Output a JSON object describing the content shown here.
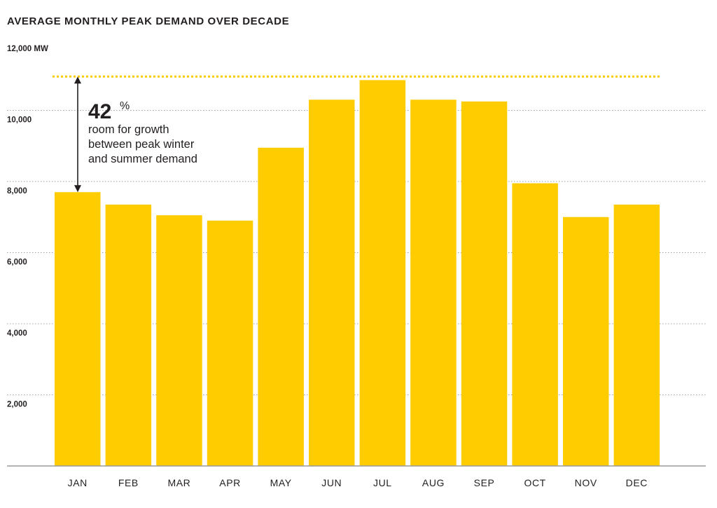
{
  "chart_data": {
    "type": "bar",
    "title": "AVERAGE MONTHLY PEAK DEMAND OVER DECADE",
    "unit": "MW",
    "ylim": [
      0,
      12000
    ],
    "yticks": [
      {
        "value": 2000,
        "label": "2,000"
      },
      {
        "value": 4000,
        "label": "4,000"
      },
      {
        "value": 6000,
        "label": "6,000"
      },
      {
        "value": 8000,
        "label": "8,000"
      },
      {
        "value": 10000,
        "label": "10,000"
      },
      {
        "value": 12000,
        "label": "12,000 MW"
      }
    ],
    "grid": true,
    "categories": [
      "JAN",
      "FEB",
      "MAR",
      "APR",
      "MAY",
      "JUN",
      "JUL",
      "AUG",
      "SEP",
      "OCT",
      "NOV",
      "DEC"
    ],
    "values": [
      7700,
      7350,
      7050,
      6900,
      8950,
      10300,
      10850,
      10300,
      10250,
      7950,
      7000,
      7350
    ],
    "colors": {
      "bar": "#ffcc00",
      "reference_line": "#ffcc00",
      "axis": "#9a9a9a",
      "text": "#231f20"
    },
    "reference_line": {
      "value": 10950,
      "style": "dotted"
    },
    "annotation": {
      "value": "42",
      "unit": "%",
      "lines": [
        "room for growth",
        "between peak winter",
        "and summer demand"
      ],
      "arrow_from": 7700,
      "arrow_to": 10950
    }
  }
}
